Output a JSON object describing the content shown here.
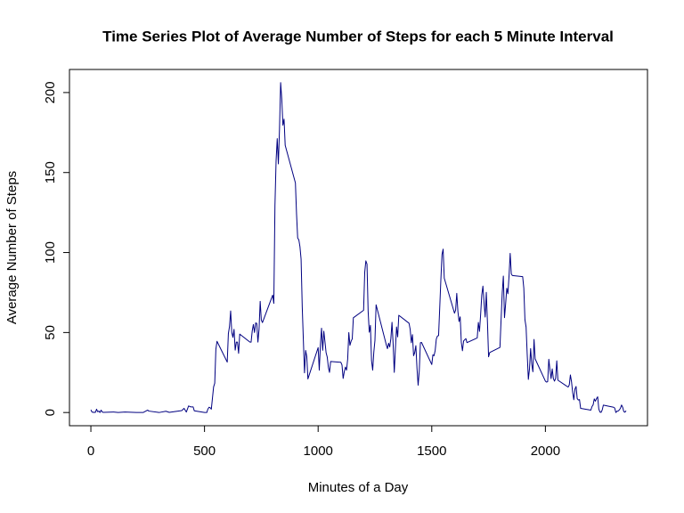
{
  "chart_data": {
    "type": "line",
    "title": "Time Series Plot of Average Number of Steps for each 5 Minute Interval",
    "x_label": "Minutes of a Day",
    "y_label": "Average Number of Steps",
    "color": "#000080",
    "xlim": [
      -94.2,
      2449.2
    ],
    "ylim": [
      -8.25,
      214.42
    ],
    "xticks": [
      0,
      500,
      1000,
      1500,
      2000
    ],
    "yticks": [
      0,
      50,
      100,
      150,
      200
    ],
    "x": [
      0,
      5,
      10,
      15,
      20,
      25,
      30,
      35,
      40,
      45,
      50,
      55,
      100,
      110,
      120,
      135,
      150,
      200,
      230,
      250,
      255,
      300,
      330,
      345,
      400,
      410,
      420,
      430,
      440,
      450,
      455,
      500,
      510,
      515,
      520,
      525,
      530,
      540,
      545,
      550,
      555,
      600,
      605,
      610,
      615,
      620,
      625,
      630,
      635,
      640,
      645,
      650,
      655,
      700,
      705,
      710,
      715,
      720,
      725,
      730,
      735,
      740,
      745,
      750,
      755,
      800,
      805,
      810,
      815,
      820,
      825,
      830,
      835,
      840,
      845,
      850,
      855,
      900,
      905,
      910,
      915,
      920,
      925,
      930,
      935,
      940,
      945,
      950,
      955,
      1000,
      1005,
      1010,
      1015,
      1020,
      1025,
      1030,
      1035,
      1040,
      1045,
      1050,
      1055,
      1100,
      1105,
      1110,
      1115,
      1120,
      1125,
      1130,
      1135,
      1140,
      1145,
      1150,
      1155,
      1200,
      1205,
      1210,
      1215,
      1220,
      1225,
      1230,
      1235,
      1240,
      1245,
      1250,
      1255,
      1300,
      1305,
      1310,
      1315,
      1320,
      1325,
      1330,
      1335,
      1340,
      1345,
      1350,
      1355,
      1400,
      1405,
      1410,
      1415,
      1420,
      1425,
      1430,
      1435,
      1440,
      1445,
      1450,
      1455,
      1500,
      1505,
      1510,
      1515,
      1520,
      1525,
      1530,
      1535,
      1540,
      1545,
      1550,
      1555,
      1600,
      1605,
      1610,
      1615,
      1620,
      1625,
      1630,
      1635,
      1640,
      1645,
      1650,
      1655,
      1700,
      1705,
      1710,
      1715,
      1720,
      1725,
      1730,
      1735,
      1740,
      1745,
      1750,
      1755,
      1800,
      1805,
      1810,
      1815,
      1820,
      1825,
      1830,
      1835,
      1840,
      1845,
      1850,
      1855,
      1900,
      1905,
      1910,
      1915,
      1920,
      1925,
      1930,
      1935,
      1940,
      1945,
      1950,
      1955,
      2000,
      2005,
      2010,
      2015,
      2020,
      2025,
      2030,
      2035,
      2040,
      2045,
      2050,
      2055,
      2100,
      2105,
      2110,
      2115,
      2120,
      2125,
      2130,
      2135,
      2140,
      2145,
      2150,
      2155,
      2200,
      2205,
      2210,
      2215,
      2220,
      2225,
      2230,
      2235,
      2240,
      2245,
      2250,
      2255,
      2300,
      2305,
      2310,
      2315,
      2320,
      2325,
      2330,
      2335,
      2340,
      2345,
      2350,
      2355
    ],
    "values": [
      1.7,
      0.3,
      0.1,
      0.2,
      0.1,
      2.1,
      0.5,
      0.9,
      0,
      1.5,
      0.3,
      0.1,
      0.3,
      0.2,
      0,
      0.2,
      0.3,
      0,
      0,
      1.5,
      0.9,
      0,
      0.8,
      0.1,
      1.2,
      2.6,
      0.3,
      4.1,
      3.5,
      3.5,
      1.1,
      0,
      0,
      2.2,
      3.3,
      3,
      2.1,
      16,
      18.3,
      39.5,
      44.5,
      31.5,
      49.3,
      53.8,
      63.5,
      50,
      47,
      52,
      39,
      44,
      44,
      37,
      49,
      44,
      44,
      51,
      55,
      50,
      56,
      55.7,
      44,
      52,
      69.5,
      57.8,
      56.2,
      73.4,
      68.2,
      129.4,
      157.5,
      171.2,
      155.4,
      177.3,
      206.2,
      195.9,
      179.6,
      183.4,
      167,
      143.5,
      124,
      109,
      108,
      103.7,
      95.9,
      66.2,
      45.2,
      24.8,
      38.8,
      35,
      21,
      40.6,
      26.5,
      42.4,
      52.7,
      38.9,
      50.8,
      44.3,
      37.4,
      34.7,
      28.3,
      25.1,
      31.9,
      31.4,
      29.7,
      21.3,
      25.5,
      28.4,
      26.5,
      33.4,
      49.98,
      42.0,
      44.6,
      46.0,
      59.2,
      63.9,
      87.7,
      94.8,
      92.8,
      63.4,
      50.2,
      54.5,
      32.4,
      26.5,
      37.7,
      45.1,
      67.3,
      42.3,
      39.9,
      43.3,
      40.98,
      46.2,
      56.4,
      42.8,
      25.1,
      39.97,
      53.5,
      47.3,
      60.8,
      55.8,
      51.96,
      43.6,
      48.7,
      35.5,
      37.5,
      41.8,
      27.5,
      17.1,
      26.1,
      43.6,
      43.8,
      30.0,
      36.1,
      35.5,
      38.8,
      45.96,
      47.8,
      48.1,
      65.3,
      82.9,
      98.7,
      102.1,
      83.96,
      62.1,
      64.1,
      74.5,
      63.2,
      56.9,
      59.8,
      43.9,
      38.6,
      44.7,
      45.5,
      46.2,
      43.7,
      46.6,
      56.3,
      50.7,
      61.2,
      73.4,
      79.0,
      68.9,
      59.7,
      75.1,
      56.5,
      34.8,
      37.5,
      40.7,
      58.0,
      74.7,
      85.3,
      59.3,
      67.8,
      77.7,
      74.2,
      85.3,
      99.5,
      86.6,
      85.6,
      84.9,
      77.8,
      58.0,
      53.4,
      36.3,
      20.7,
      27.4,
      40.0,
      30.2,
      25.5,
      45.7,
      33.5,
      19.6,
      19.0,
      19.3,
      33.3,
      26.8,
      21.2,
      27.3,
      21.3,
      19.6,
      21.3,
      32.3,
      20.2,
      15.9,
      17.2,
      23.5,
      19.2,
      12.5,
      8.0,
      14.7,
      16.3,
      8.7,
      7.8,
      8.1,
      2.6,
      1.5,
      3.7,
      4.8,
      8.5,
      7.1,
      8.7,
      9.8,
      2.2,
      0.3,
      0.1,
      1.6,
      4.6,
      3.3,
      2.8,
      0,
      0.8,
      0.96,
      1.6,
      2.6,
      4.7,
      3.3,
      0.6,
      0.2,
      1.1
    ]
  }
}
